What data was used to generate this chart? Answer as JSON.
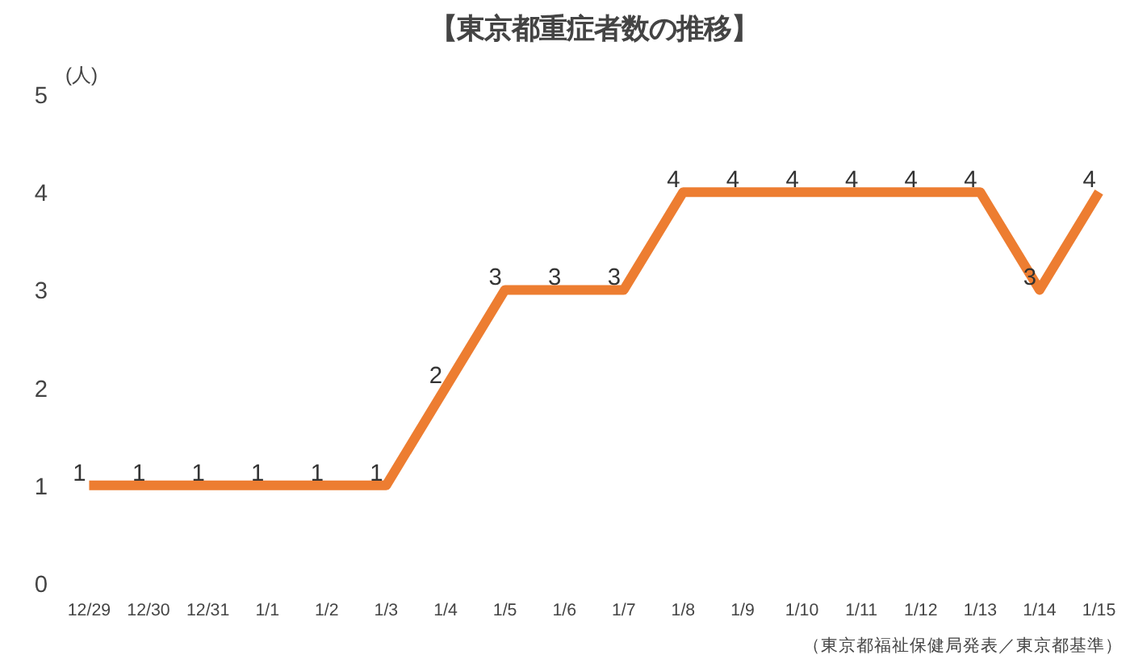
{
  "chart_data": {
    "type": "line",
    "title": "【東京都重症者数の推移】",
    "ylabel": "(人)",
    "categories": [
      "12/29",
      "12/30",
      "12/31",
      "1/1",
      "1/2",
      "1/3",
      "1/4",
      "1/5",
      "1/6",
      "1/7",
      "1/8",
      "1/9",
      "1/10",
      "1/11",
      "1/12",
      "1/13",
      "1/14",
      "1/15"
    ],
    "series": [
      {
        "color": "#ed7d31",
        "values": [
          1,
          1,
          1,
          1,
          1,
          1,
          2,
          3,
          3,
          3,
          4,
          4,
          4,
          4,
          4,
          4,
          3,
          4
        ]
      }
    ],
    "ylim": [
      0,
      5
    ],
    "yticks": [
      0,
      1,
      2,
      3,
      4,
      5
    ],
    "grid": false,
    "marker": "none",
    "line_style": "solid",
    "data_labels": true,
    "annotations": [
      "（東京都福祉保健局発表／東京都基準）"
    ]
  }
}
